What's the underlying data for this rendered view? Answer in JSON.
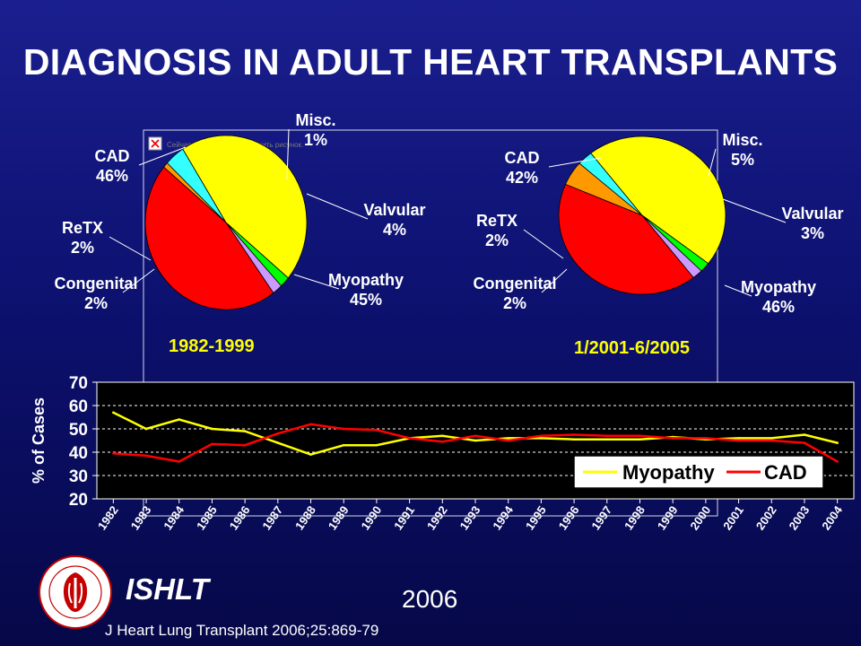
{
  "slide": {
    "title": "DIAGNOSIS IN ADULT HEART TRANSPLANTS",
    "org": "ISHLT",
    "year": "2006",
    "citation": "J Heart Lung Transplant 2006;25:869-79",
    "broken_image_caption": "Сейчас невозможно отобразить рисунок."
  },
  "chart_data": [
    {
      "type": "pie",
      "title": "1982-1999",
      "slices": [
        {
          "label": "CAD",
          "value": 46,
          "value_label": "46%",
          "color": "#ff0000"
        },
        {
          "label": "Misc.",
          "value": 1,
          "value_label": "1%",
          "color": "#ff9900"
        },
        {
          "label": "Valvular",
          "value": 4,
          "value_label": "4%",
          "color": "#33ffff"
        },
        {
          "label": "Myopathy",
          "value": 45,
          "value_label": "45%",
          "color": "#ffff00"
        },
        {
          "label": "Congenital",
          "value": 2,
          "value_label": "2%",
          "color": "#00ff00"
        },
        {
          "label": "ReTX",
          "value": 2,
          "value_label": "2%",
          "color": "#cc99ff"
        }
      ]
    },
    {
      "type": "pie",
      "title": "1/2001-6/2005",
      "slices": [
        {
          "label": "CAD",
          "value": 42,
          "value_label": "42%",
          "color": "#ff0000"
        },
        {
          "label": "Misc.",
          "value": 5,
          "value_label": "5%",
          "color": "#ff9900"
        },
        {
          "label": "Valvular",
          "value": 3,
          "value_label": "3%",
          "color": "#33ffff"
        },
        {
          "label": "Myopathy",
          "value": 46,
          "value_label": "46%",
          "color": "#ffff00"
        },
        {
          "label": "Congenital",
          "value": 2,
          "value_label": "2%",
          "color": "#00ff00"
        },
        {
          "label": "ReTX",
          "value": 2,
          "value_label": "2%",
          "color": "#cc99ff"
        }
      ]
    },
    {
      "type": "line",
      "ylabel": "% of Cases",
      "ylim": [
        20,
        70
      ],
      "yticks": [
        20,
        30,
        40,
        50,
        60,
        70
      ],
      "grid": true,
      "legend": "bottom-right",
      "categories": [
        "1982",
        "1983",
        "1984",
        "1985",
        "1986",
        "1987",
        "1988",
        "1989",
        "1990",
        "1991",
        "1992",
        "1993",
        "1994",
        "1995",
        "1996",
        "1997",
        "1998",
        "1999",
        "2000",
        "2001",
        "2002",
        "2003",
        "2004"
      ],
      "series": [
        {
          "name": "Myopathy",
          "color": "#ffff00",
          "values": [
            57,
            50,
            54,
            50,
            49,
            44,
            39,
            43,
            43,
            46,
            47,
            45,
            46,
            46,
            45.5,
            45.5,
            45.5,
            46.5,
            45.5,
            46,
            46,
            47.5,
            44
          ]
        },
        {
          "name": "CAD",
          "color": "#ff0000",
          "values": [
            39.5,
            38.5,
            36,
            43.5,
            43,
            48,
            52,
            50,
            49.5,
            46,
            44.5,
            47,
            45,
            47,
            47.5,
            47,
            47,
            46,
            46,
            45,
            45,
            44,
            36
          ]
        }
      ]
    }
  ]
}
